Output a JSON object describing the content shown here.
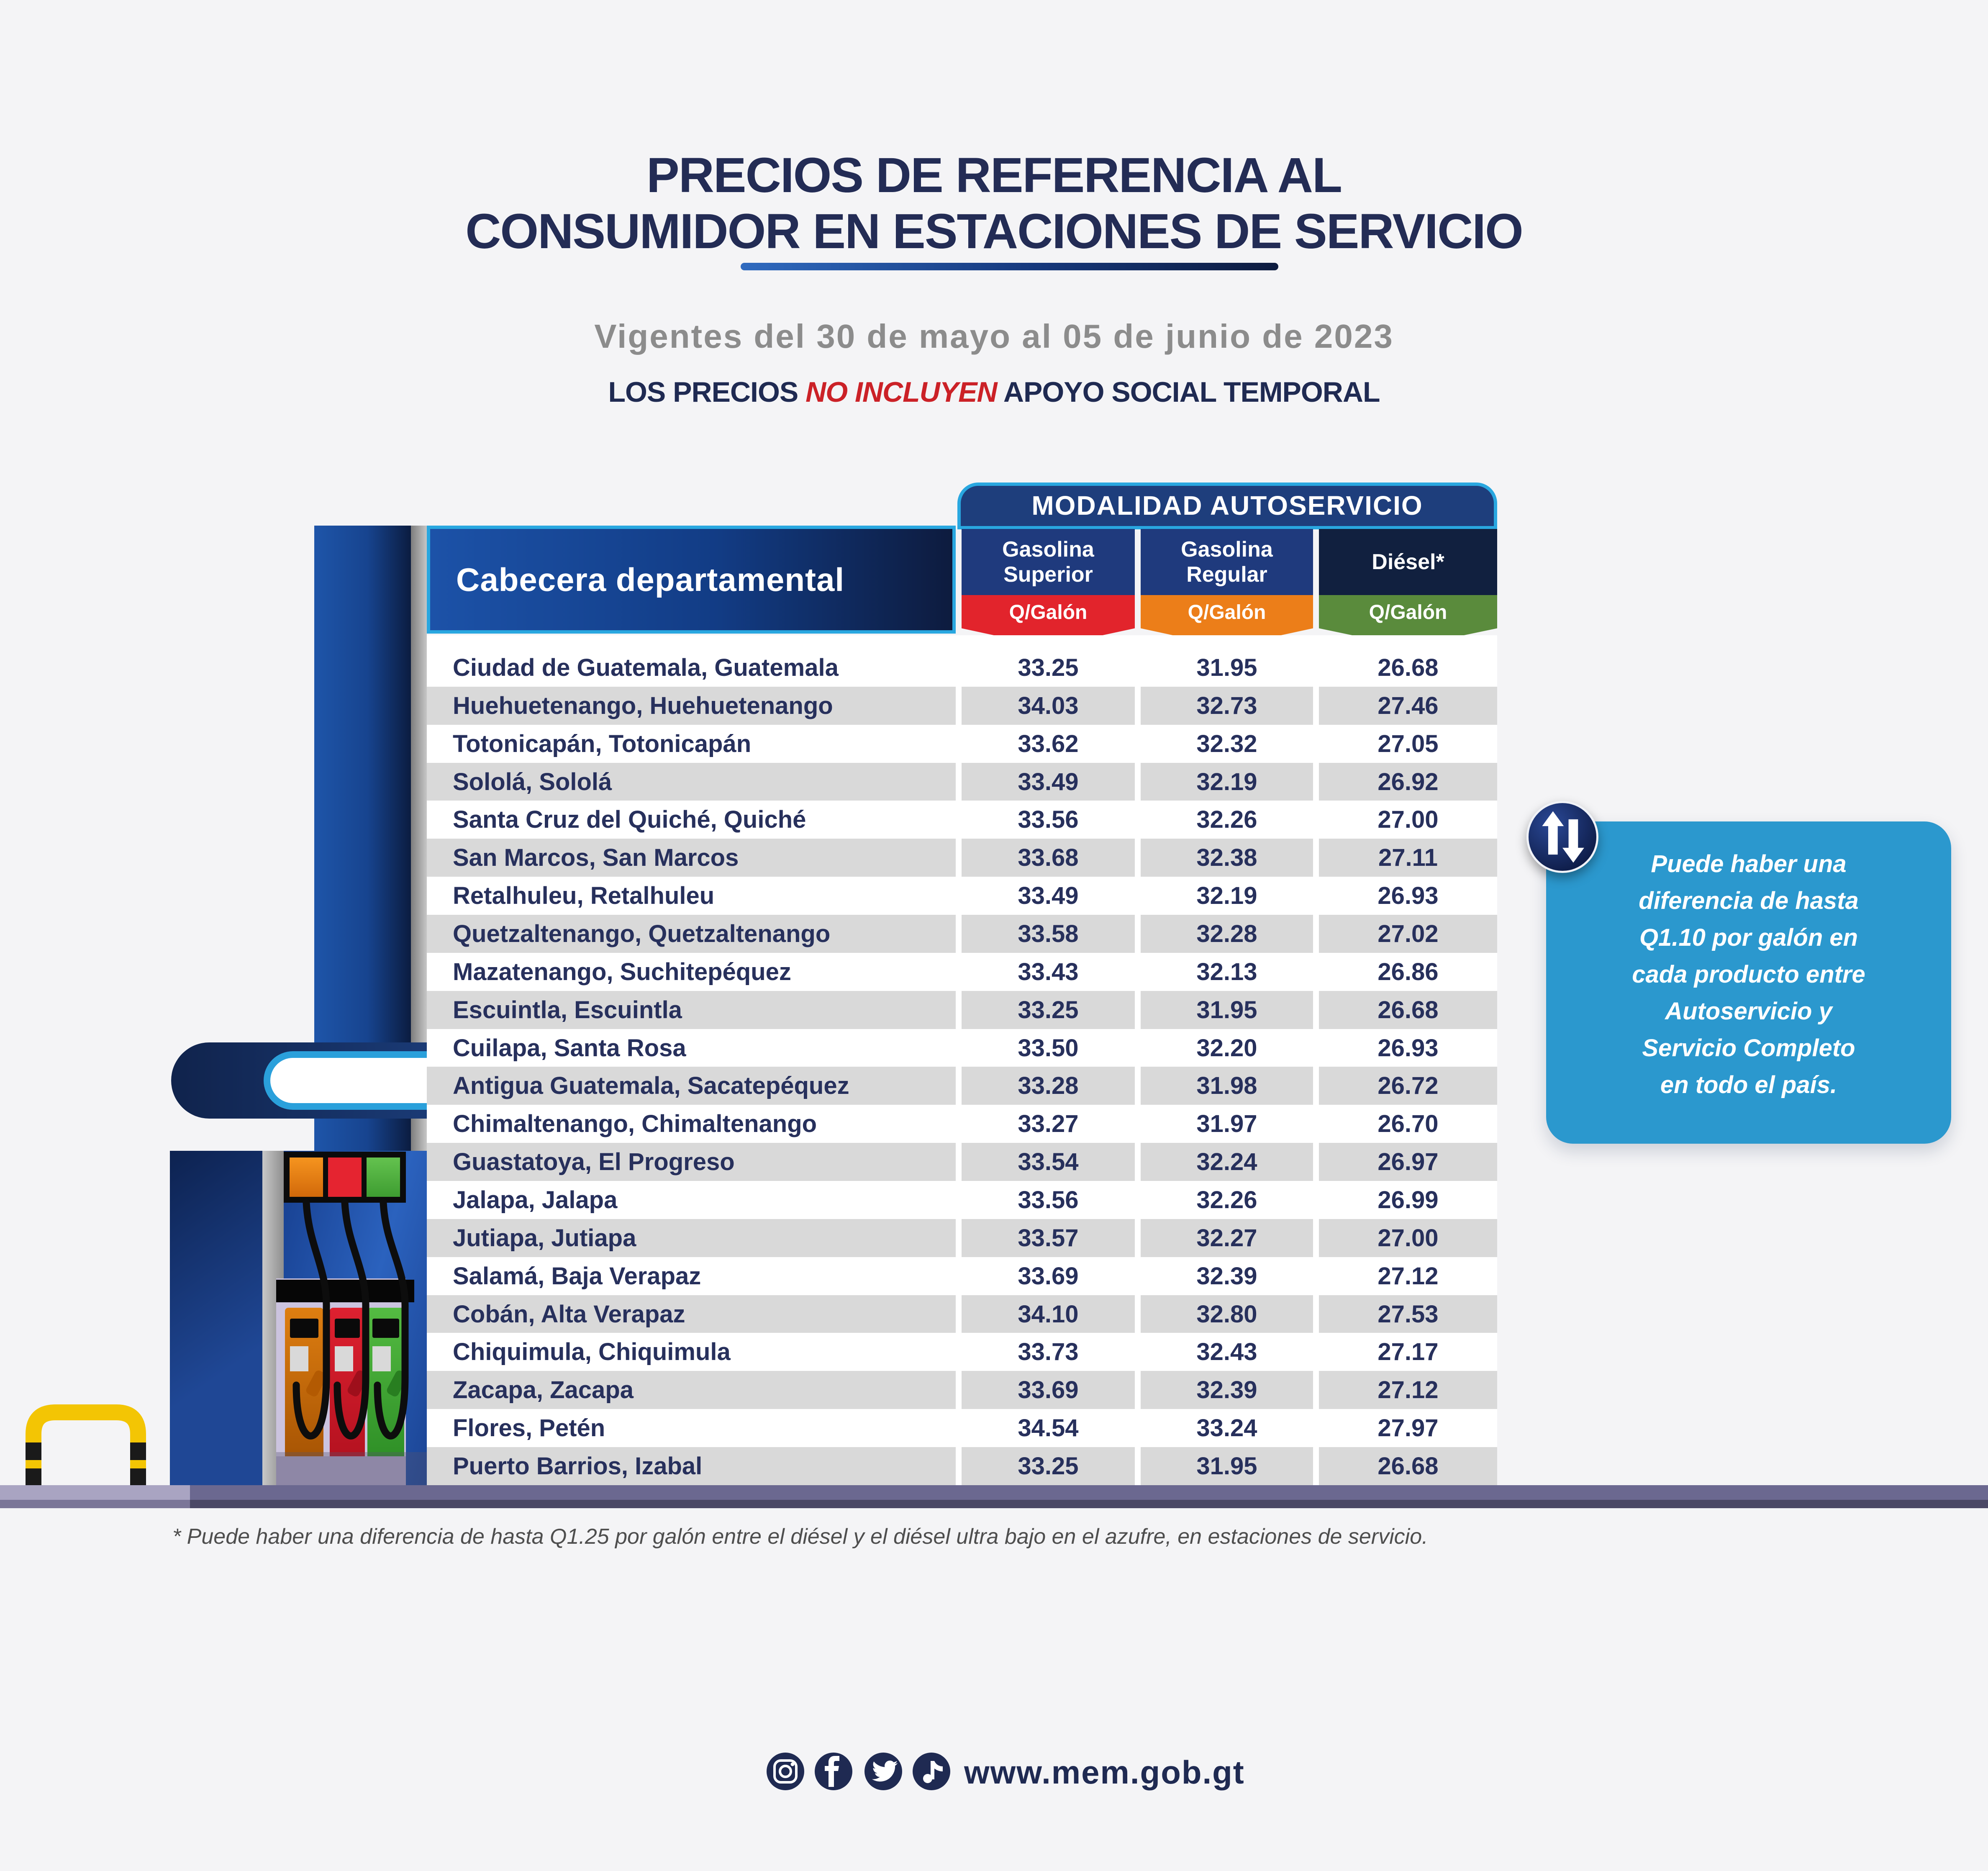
{
  "header": {
    "title_line1": "PRECIOS DE REFERENCIA AL",
    "title_line2": "CONSUMIDOR EN ESTACIONES DE SERVICIO",
    "subtitle": "Vigentes del 30 de mayo al 05 de junio de 2023",
    "notice": {
      "prefix": "LOS PRECIOS ",
      "highlight": "NO INCLUYEN",
      "suffix": " APOYO SOCIAL TEMPORAL"
    }
  },
  "table": {
    "banner": "MODALIDAD AUTOSERVICIO",
    "city_header": "Cabecera departamental",
    "columns": [
      {
        "name_line1": "Gasolina",
        "name_line2": "Superior",
        "unit": "Q/Galón",
        "header_bg": "#1F3A7D",
        "ribbon_color": "#E2242C"
      },
      {
        "name_line1": "Gasolina",
        "name_line2": "Regular",
        "unit": "Q/Galón",
        "header_bg": "#1F3A7D",
        "ribbon_color": "#EC7E19"
      },
      {
        "name_line1": "Diésel*",
        "name_line2": "",
        "unit": "Q/Galón",
        "header_bg": "#11203F",
        "ribbon_color": "#5A8B3C"
      }
    ],
    "rows": [
      {
        "city": "Ciudad de Guatemala, Guatemala",
        "superior": "33.25",
        "regular": "31.95",
        "diesel": "26.68"
      },
      {
        "city": "Huehuetenango, Huehuetenango",
        "superior": "34.03",
        "regular": "32.73",
        "diesel": "27.46"
      },
      {
        "city": "Totonicapán, Totonicapán",
        "superior": "33.62",
        "regular": "32.32",
        "diesel": "27.05"
      },
      {
        "city": "Sololá, Sololá",
        "superior": "33.49",
        "regular": "32.19",
        "diesel": "26.92"
      },
      {
        "city": "Santa Cruz del Quiché, Quiché",
        "superior": "33.56",
        "regular": "32.26",
        "diesel": "27.00"
      },
      {
        "city": "San Marcos, San Marcos",
        "superior": "33.68",
        "regular": "32.38",
        "diesel": "27.11"
      },
      {
        "city": "Retalhuleu, Retalhuleu",
        "superior": "33.49",
        "regular": "32.19",
        "diesel": "26.93"
      },
      {
        "city": "Quetzaltenango, Quetzaltenango",
        "superior": "33.58",
        "regular": "32.28",
        "diesel": "27.02"
      },
      {
        "city": "Mazatenango, Suchitepéquez",
        "superior": "33.43",
        "regular": "32.13",
        "diesel": "26.86"
      },
      {
        "city": "Escuintla, Escuintla",
        "superior": "33.25",
        "regular": "31.95",
        "diesel": "26.68"
      },
      {
        "city": "Cuilapa, Santa Rosa",
        "superior": "33.50",
        "regular": "32.20",
        "diesel": "26.93"
      },
      {
        "city": "Antigua Guatemala, Sacatepéquez",
        "superior": "33.28",
        "regular": "31.98",
        "diesel": "26.72"
      },
      {
        "city": "Chimaltenango, Chimaltenango",
        "superior": "33.27",
        "regular": "31.97",
        "diesel": "26.70"
      },
      {
        "city": "Guastatoya, El Progreso",
        "superior": "33.54",
        "regular": "32.24",
        "diesel": "26.97"
      },
      {
        "city": "Jalapa, Jalapa",
        "superior": "33.56",
        "regular": "32.26",
        "diesel": "26.99"
      },
      {
        "city": "Jutiapa, Jutiapa",
        "superior": "33.57",
        "regular": "32.27",
        "diesel": "27.00"
      },
      {
        "city": "Salamá, Baja Verapaz",
        "superior": "33.69",
        "regular": "32.39",
        "diesel": "27.12"
      },
      {
        "city": "Cobán, Alta Verapaz",
        "superior": "34.10",
        "regular": "32.80",
        "diesel": "27.53"
      },
      {
        "city": "Chiquimula, Chiquimula",
        "superior": "33.73",
        "regular": "32.43",
        "diesel": "27.17"
      },
      {
        "city": "Zacapa, Zacapa",
        "superior": "33.69",
        "regular": "32.39",
        "diesel": "27.12"
      },
      {
        "city": "Flores, Petén",
        "superior": "34.54",
        "regular": "33.24",
        "diesel": "27.97"
      },
      {
        "city": "Puerto Barrios, Izabal",
        "superior": "33.25",
        "regular": "31.95",
        "diesel": "26.68"
      }
    ]
  },
  "callout": {
    "background": "#2B98CE",
    "lines": [
      "Puede haber una",
      "diferencia de hasta",
      "Q1.10 por galón en",
      "cada producto entre",
      "Autoservicio y",
      "Servicio Completo",
      "en todo el país."
    ]
  },
  "footnote": "* Puede haber una diferencia de hasta Q1.25 por galón entre el diésel y el diésel ultra bajo en el azufre, en estaciones de servicio.",
  "footer": {
    "url": "www.mem.gob.gt",
    "social_icons": [
      "instagram",
      "facebook",
      "twitter",
      "tiktok"
    ]
  },
  "colors": {
    "page_background": "#F4F4F6",
    "navy_text": "#232C55",
    "subtitle_gray": "#8C8C8C",
    "highlight_red": "#CB2127",
    "cyan_border": "#29A7E0",
    "banner_blue": "#1E3E7C",
    "row_stripe_gray": "#D9D9D9",
    "road_purple": "#6B6890"
  }
}
